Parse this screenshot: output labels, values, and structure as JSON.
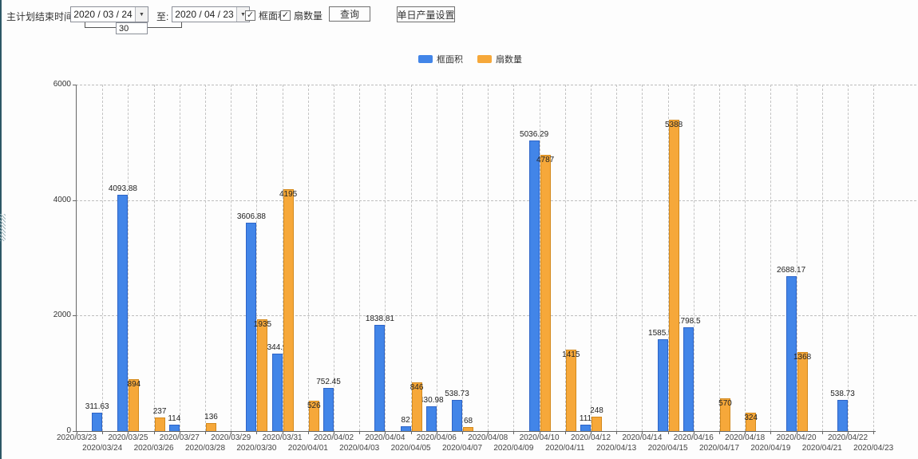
{
  "toolbar": {
    "range_label": "主计划结束时间:",
    "date_from": "2020 / 03 / 24",
    "to_label": "至:",
    "date_to": "2020 / 04 / 23",
    "interval_value": "30",
    "checkbox_frame_area": "框面积",
    "checkbox_fan_count": "扇数量",
    "query_button": "查询",
    "daily_output_button": "单日产量设置"
  },
  "legend": {
    "items": [
      {
        "label": "框面积",
        "color": "#4285e8"
      },
      {
        "label": "扇数量",
        "color": "#f6a83a"
      }
    ]
  },
  "chart_data": {
    "type": "bar",
    "title": "",
    "xlabel": "",
    "ylabel": "",
    "ylim": [
      0,
      6000
    ],
    "yticks": [
      0,
      2000,
      4000,
      6000
    ],
    "grid": true,
    "legend_position": "top",
    "categories": [
      "2020/03/23",
      "2020/03/24",
      "2020/03/25",
      "2020/03/26",
      "2020/03/27",
      "2020/03/28",
      "2020/03/29",
      "2020/03/30",
      "2020/03/31",
      "2020/04/01",
      "2020/04/02",
      "2020/04/03",
      "2020/04/04",
      "2020/04/05",
      "2020/04/06",
      "2020/04/07",
      "2020/04/08",
      "2020/04/09",
      "2020/04/10",
      "2020/04/11",
      "2020/04/12",
      "2020/04/13",
      "2020/04/14",
      "2020/04/15",
      "2020/04/16",
      "2020/04/17",
      "2020/04/18",
      "2020/04/19",
      "2020/04/20",
      "2020/04/21",
      "2020/04/22",
      "2020/04/23"
    ],
    "series": [
      {
        "name": "框面积",
        "color": "#4285e8",
        "values": [
          null,
          311.63,
          4093.88,
          null,
          114,
          null,
          null,
          3606.88,
          1344.95,
          null,
          752.45,
          null,
          1838.81,
          82,
          430.98,
          538.73,
          null,
          null,
          5036.29,
          null,
          111,
          null,
          null,
          1585.96,
          1798.5,
          null,
          null,
          null,
          2688.17,
          null,
          538.73,
          null
        ]
      },
      {
        "name": "扇数量",
        "color": "#f6a83a",
        "values": [
          null,
          null,
          894,
          237,
          null,
          136,
          null,
          1935,
          4195,
          526,
          null,
          null,
          null,
          846,
          null,
          68,
          null,
          null,
          4787,
          1415,
          248,
          null,
          null,
          5388,
          null,
          570,
          324,
          null,
          1368,
          null,
          null,
          null
        ]
      }
    ]
  }
}
